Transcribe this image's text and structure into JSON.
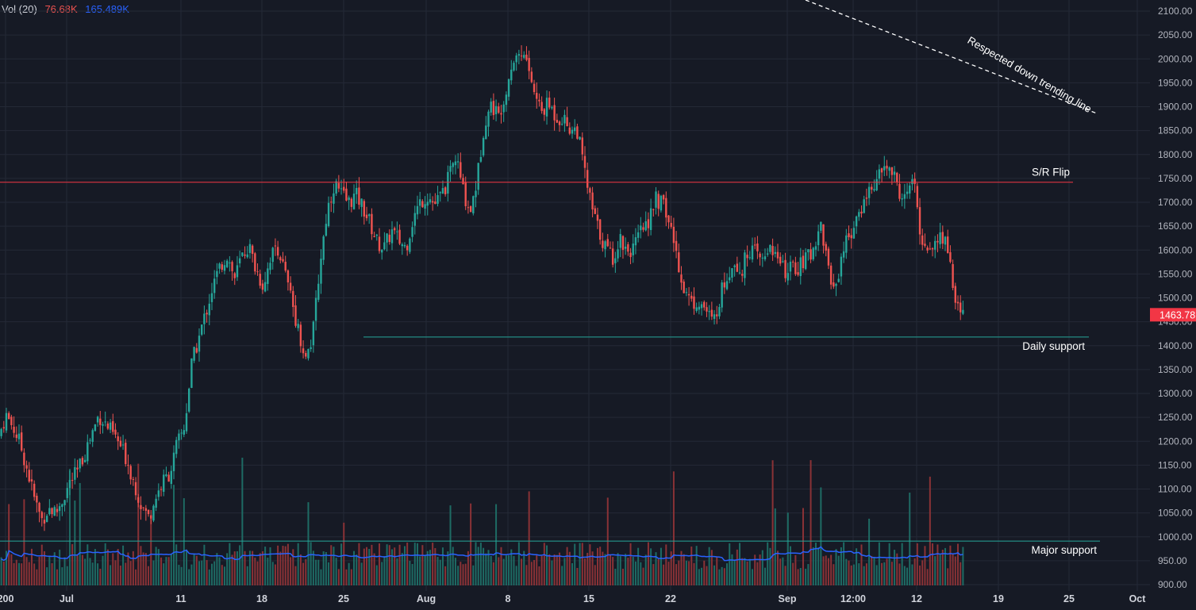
{
  "legend": {
    "label": "Vol (20)",
    "value_down": "76.68K",
    "value_ma": "165.489K"
  },
  "colors": {
    "background": "#161a25",
    "grid": "#242936",
    "up": "#26a69a",
    "down": "#ef5350",
    "volume_up": "#1e6b64",
    "volume_down": "#8a3236",
    "volume_ma": "#2962ff",
    "sr_line": "#f23645",
    "support_line": "#26a69a",
    "badge": "#f23645"
  },
  "chart_data": {
    "type": "candlestick",
    "y_axis": {
      "range": [
        900,
        2100
      ],
      "tick_labels": [
        "2100.00",
        "2050.00",
        "2000.00",
        "1950.00",
        "1900.00",
        "1850.00",
        "1800.00",
        "1750.00",
        "1700.00",
        "1650.00",
        "1600.00",
        "1550.00",
        "1500.00",
        "1450.00",
        "1400.00",
        "1350.00",
        "1300.00",
        "1250.00",
        "1200.00",
        "1150.00",
        "1100.00",
        "1050.00",
        "1000.00",
        "950.00",
        "900.00"
      ]
    },
    "x_axis": {
      "tick_labels": [
        "200",
        "Jul",
        "11",
        "18",
        "25",
        "Aug",
        "8",
        "15",
        "22",
        "Sep",
        "12:00",
        "12",
        "19",
        "25",
        "Oct"
      ]
    },
    "last_price": "1463.78",
    "path_points": [
      [
        0,
        1210
      ],
      [
        1,
        1255
      ],
      [
        2,
        1230
      ],
      [
        3,
        1195
      ],
      [
        4,
        1140
      ],
      [
        5,
        1080
      ],
      [
        6,
        1035
      ],
      [
        7,
        1060
      ],
      [
        8,
        1050
      ],
      [
        9,
        1080
      ],
      [
        10,
        1115
      ],
      [
        11,
        1135
      ],
      [
        12,
        1175
      ],
      [
        13,
        1215
      ],
      [
        14,
        1255
      ],
      [
        15,
        1235
      ],
      [
        16,
        1215
      ],
      [
        17,
        1190
      ],
      [
        18,
        1160
      ],
      [
        19,
        1110
      ],
      [
        20,
        1065
      ],
      [
        21,
        1040
      ],
      [
        22,
        1085
      ],
      [
        23,
        1115
      ],
      [
        24,
        1135
      ],
      [
        25,
        1195
      ],
      [
        26,
        1230
      ],
      [
        27,
        1360
      ],
      [
        28,
        1415
      ],
      [
        29,
        1470
      ],
      [
        30,
        1525
      ],
      [
        31,
        1565
      ],
      [
        32,
        1590
      ],
      [
        33,
        1540
      ],
      [
        34,
        1585
      ],
      [
        35,
        1610
      ],
      [
        36,
        1560
      ],
      [
        37,
        1525
      ],
      [
        38,
        1585
      ],
      [
        39,
        1610
      ],
      [
        40,
        1555
      ],
      [
        41,
        1495
      ],
      [
        42,
        1430
      ],
      [
        43,
        1370
      ],
      [
        44,
        1425
      ],
      [
        45,
        1575
      ],
      [
        46,
        1685
      ],
      [
        47,
        1740
      ],
      [
        48,
        1715
      ],
      [
        49,
        1700
      ],
      [
        50,
        1715
      ],
      [
        51,
        1690
      ],
      [
        52,
        1655
      ],
      [
        53,
        1615
      ],
      [
        54,
        1605
      ],
      [
        55,
        1640
      ],
      [
        56,
        1620
      ],
      [
        57,
        1605
      ],
      [
        58,
        1665
      ],
      [
        59,
        1700
      ],
      [
        60,
        1715
      ],
      [
        61,
        1695
      ],
      [
        62,
        1715
      ],
      [
        63,
        1750
      ],
      [
        64,
        1795
      ],
      [
        65,
        1725
      ],
      [
        66,
        1680
      ],
      [
        67,
        1750
      ],
      [
        68,
        1870
      ],
      [
        69,
        1905
      ],
      [
        70,
        1880
      ],
      [
        71,
        1940
      ],
      [
        72,
        2000
      ],
      [
        73,
        2015
      ],
      [
        74,
        1995
      ],
      [
        75,
        1925
      ],
      [
        76,
        1890
      ],
      [
        77,
        1905
      ],
      [
        78,
        1880
      ],
      [
        79,
        1875
      ],
      [
        80,
        1855
      ],
      [
        81,
        1850
      ],
      [
        82,
        1765
      ],
      [
        83,
        1690
      ],
      [
        84,
        1640
      ],
      [
        85,
        1605
      ],
      [
        86,
        1585
      ],
      [
        87,
        1625
      ],
      [
        88,
        1600
      ],
      [
        89,
        1605
      ],
      [
        90,
        1640
      ],
      [
        91,
        1665
      ],
      [
        92,
        1705
      ],
      [
        93,
        1695
      ],
      [
        94,
        1650
      ],
      [
        95,
        1585
      ],
      [
        96,
        1515
      ],
      [
        97,
        1490
      ],
      [
        98,
        1495
      ],
      [
        99,
        1475
      ],
      [
        100,
        1445
      ],
      [
        101,
        1505
      ],
      [
        102,
        1550
      ],
      [
        103,
        1580
      ],
      [
        104,
        1555
      ],
      [
        105,
        1605
      ],
      [
        106,
        1590
      ],
      [
        107,
        1575
      ],
      [
        108,
        1615
      ],
      [
        109,
        1580
      ],
      [
        110,
        1555
      ],
      [
        111,
        1560
      ],
      [
        112,
        1565
      ],
      [
        113,
        1580
      ],
      [
        114,
        1600
      ],
      [
        115,
        1660
      ],
      [
        116,
        1575
      ],
      [
        117,
        1510
      ],
      [
        118,
        1590
      ],
      [
        119,
        1635
      ],
      [
        120,
        1650
      ],
      [
        121,
        1700
      ],
      [
        122,
        1730
      ],
      [
        123,
        1745
      ],
      [
        124,
        1775
      ],
      [
        125,
        1765
      ],
      [
        126,
        1725
      ],
      [
        127,
        1705
      ],
      [
        128,
        1755
      ],
      [
        129,
        1630
      ],
      [
        130,
        1605
      ],
      [
        131,
        1610
      ],
      [
        132,
        1630
      ],
      [
        133,
        1600
      ],
      [
        134,
        1480
      ],
      [
        135,
        1463.78
      ]
    ],
    "annotations": {
      "trendline_label": "Respected down trending line",
      "sr_flip_label": "S/R Flip",
      "sr_flip_price": 1742,
      "daily_support_label": "Daily support",
      "daily_support_price": 1418,
      "major_support_label": "Major support",
      "major_support_price": 991
    }
  }
}
